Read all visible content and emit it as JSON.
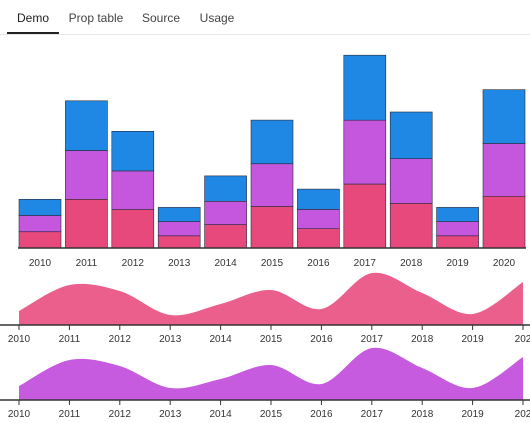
{
  "tabs": [
    {
      "label": "Demo",
      "active": true
    },
    {
      "label": "Prop table",
      "active": false
    },
    {
      "label": "Source",
      "active": false
    },
    {
      "label": "Usage",
      "active": false
    }
  ],
  "colors": {
    "series_red": "#e8497d",
    "series_purple": "#c557df",
    "series_blue": "#1f88e5",
    "stream_red_fill": "#eb5f8d",
    "stream_purple_fill": "#c65bdf"
  },
  "chart_data": [
    {
      "type": "bar",
      "stacked": true,
      "categories": [
        "2010",
        "2011",
        "2012",
        "2013",
        "2014",
        "2015",
        "2016",
        "2017",
        "2018",
        "2019",
        "2020"
      ],
      "series": [
        {
          "values": [
            16,
            48,
            38,
            12,
            23,
            41,
            19,
            63,
            44,
            12,
            51
          ]
        },
        {
          "values": [
            16,
            48,
            38,
            14,
            23,
            42,
            19,
            63,
            44,
            14,
            52
          ]
        },
        {
          "values": [
            16,
            49,
            39,
            14,
            25,
            43,
            20,
            64,
            46,
            14,
            53
          ]
        }
      ],
      "ylim": [
        0,
        200
      ],
      "grid": false
    },
    {
      "type": "area",
      "x_ticks": [
        "2010",
        "2011",
        "2012",
        "2013",
        "2014",
        "2015",
        "2016",
        "2017",
        "2018",
        "2019",
        "202"
      ],
      "values": [
        14,
        40,
        34,
        10,
        21,
        35,
        16,
        52,
        32,
        11,
        43
      ],
      "ylim": [
        0,
        60
      ]
    },
    {
      "type": "area",
      "x_ticks": [
        "2010",
        "2011",
        "2012",
        "2013",
        "2014",
        "2015",
        "2016",
        "2017",
        "2018",
        "2019",
        "202"
      ],
      "values": [
        14,
        40,
        34,
        12,
        21,
        35,
        16,
        52,
        32,
        12,
        43
      ],
      "ylim": [
        0,
        60
      ]
    }
  ]
}
